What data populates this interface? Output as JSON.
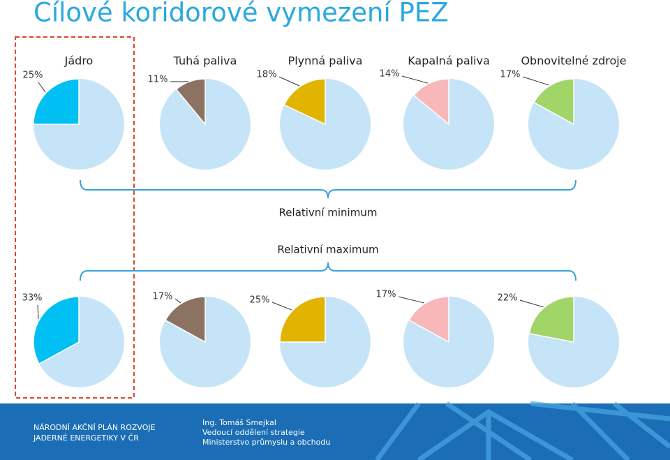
{
  "slide": {
    "title": "Cílové koridorové vymezení PEZ",
    "row_labels": [
      "Relativní minimum",
      "Relativní maximum"
    ],
    "footer": {
      "left": [
        "NÁRODNÍ AKČNÍ PLÁN ROZVOJE",
        "JADERNÉ ENERGETIKY V ČR"
      ],
      "right": [
        "Ing. Tomáš Smejkal",
        "Vedoucí oddělení strategie",
        "Ministerstvo průmyslu a obchodu"
      ]
    }
  },
  "chart_data": [
    {
      "type": "pie",
      "title": "Jádro",
      "values": [
        25
      ],
      "value_labels": [
        "25%"
      ],
      "color": "#00bff3"
    },
    {
      "type": "pie",
      "title": "Tuhá paliva",
      "values": [
        11
      ],
      "value_labels": [
        "11%"
      ],
      "color": "#8c7262"
    },
    {
      "type": "pie",
      "title": "Plynná paliva",
      "values": [
        18
      ],
      "value_labels": [
        "18%"
      ],
      "color": "#e0b400"
    },
    {
      "type": "pie",
      "title": "Kapalná paliva",
      "values": [
        14
      ],
      "value_labels": [
        "14%"
      ],
      "color": "#f8b8ba"
    },
    {
      "type": "pie",
      "title": "Obnovitelné zdroje",
      "values": [
        17
      ],
      "value_labels": [
        "17%"
      ],
      "color": "#a2d567"
    },
    {
      "type": "pie",
      "values": [
        33
      ],
      "value_labels": [
        "33%"
      ],
      "color": "#00bff3"
    },
    {
      "type": "pie",
      "values": [
        17
      ],
      "value_labels": [
        "17%"
      ],
      "color": "#8c7262"
    },
    {
      "type": "pie",
      "values": [
        25
      ],
      "value_labels": [
        "25%"
      ],
      "color": "#e0b400"
    },
    {
      "type": "pie",
      "values": [
        17
      ],
      "value_labels": [
        "17%"
      ],
      "color": "#f8b8ba"
    },
    {
      "type": "pie",
      "values": [
        22
      ],
      "value_labels": [
        "22%"
      ],
      "color": "#a2d567"
    }
  ]
}
